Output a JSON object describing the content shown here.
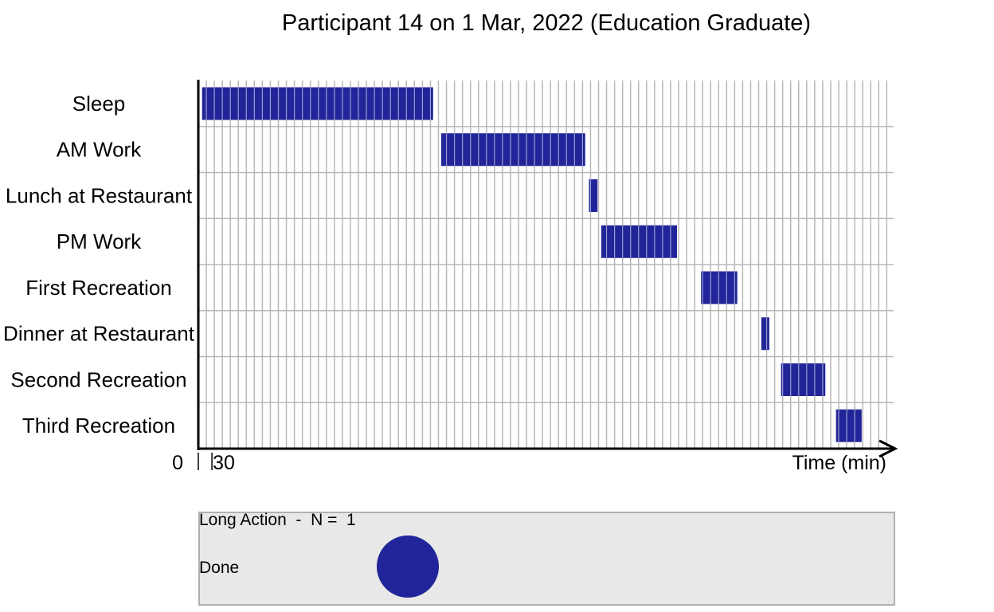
{
  "chart_data": {
    "type": "gantt",
    "title": "Participant 14 on 1 Mar, 2022 (Education Graduate)",
    "xlabel": "Time (min)",
    "x_ticks": [
      "0",
      "30"
    ],
    "xlim": [
      0,
      1300
    ],
    "grid_step": 15,
    "lanes": [
      "Sleep",
      "AM Work",
      "Lunch at Restaurant",
      "PM Work",
      "First Recreation",
      "Dinner at Restaurant",
      "Second Recreation",
      "Third Recreation"
    ],
    "tasks": [
      {
        "lane": "Sleep",
        "start": 7,
        "end": 440
      },
      {
        "lane": "AM Work",
        "start": 455,
        "end": 725
      },
      {
        "lane": "Lunch at Restaurant",
        "start": 732,
        "end": 748
      },
      {
        "lane": "PM Work",
        "start": 755,
        "end": 897
      },
      {
        "lane": "First Recreation",
        "start": 942,
        "end": 1010
      },
      {
        "lane": "Dinner at Restaurant",
        "start": 1055,
        "end": 1070
      },
      {
        "lane": "Second Recreation",
        "start": 1092,
        "end": 1175
      },
      {
        "lane": "Third Recreation",
        "start": 1195,
        "end": 1243
      }
    ],
    "bar_color": "#222599",
    "legend": {
      "placement": "bottom",
      "heading": "Long Action  -  N =  1",
      "items": [
        {
          "label": "Done",
          "color": "#222599"
        }
      ]
    }
  }
}
